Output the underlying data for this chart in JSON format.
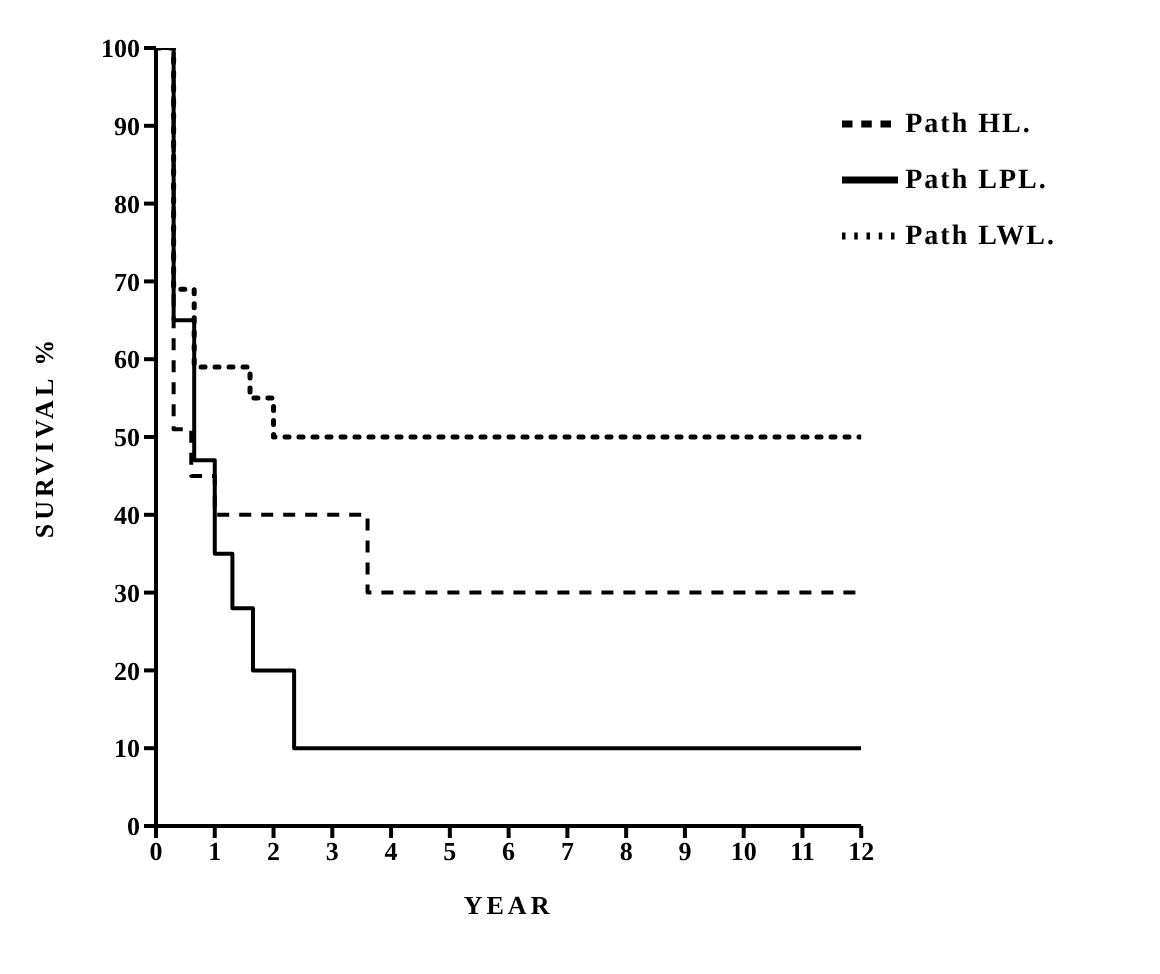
{
  "chart_data": {
    "type": "step",
    "xlabel": "YEAR",
    "ylabel": "SURVIVAL %",
    "xlim": [
      0,
      12
    ],
    "xticks": [
      0,
      1,
      2,
      3,
      4,
      5,
      6,
      7,
      8,
      9,
      10,
      11,
      12
    ],
    "ylim": [
      0,
      100
    ],
    "yticks": [
      0,
      10,
      20,
      30,
      40,
      50,
      60,
      70,
      80,
      90,
      100
    ],
    "grid": false,
    "legend": "top right",
    "marker": "none",
    "series": [
      {
        "name": "Path LWL.",
        "color": "#000000",
        "line_style": "dotted",
        "x": [
          0,
          0.3,
          0.65,
          1.6,
          2,
          12
        ],
        "values": [
          100,
          69,
          59,
          55,
          50,
          50
        ]
      },
      {
        "name": "Path LPL.",
        "color": "#000000",
        "line_style": "solid",
        "x": [
          0,
          0.3,
          0.65,
          1,
          1.3,
          1.65,
          2.35,
          12
        ],
        "values": [
          100,
          65,
          47,
          35,
          28,
          20,
          10,
          10
        ]
      },
      {
        "name": "Path HL.",
        "color": "#000000",
        "line_style": "dashed",
        "x": [
          0,
          0.3,
          0.6,
          1,
          3.6,
          12
        ],
        "values": [
          100,
          51,
          45,
          40,
          30,
          30
        ]
      }
    ]
  }
}
